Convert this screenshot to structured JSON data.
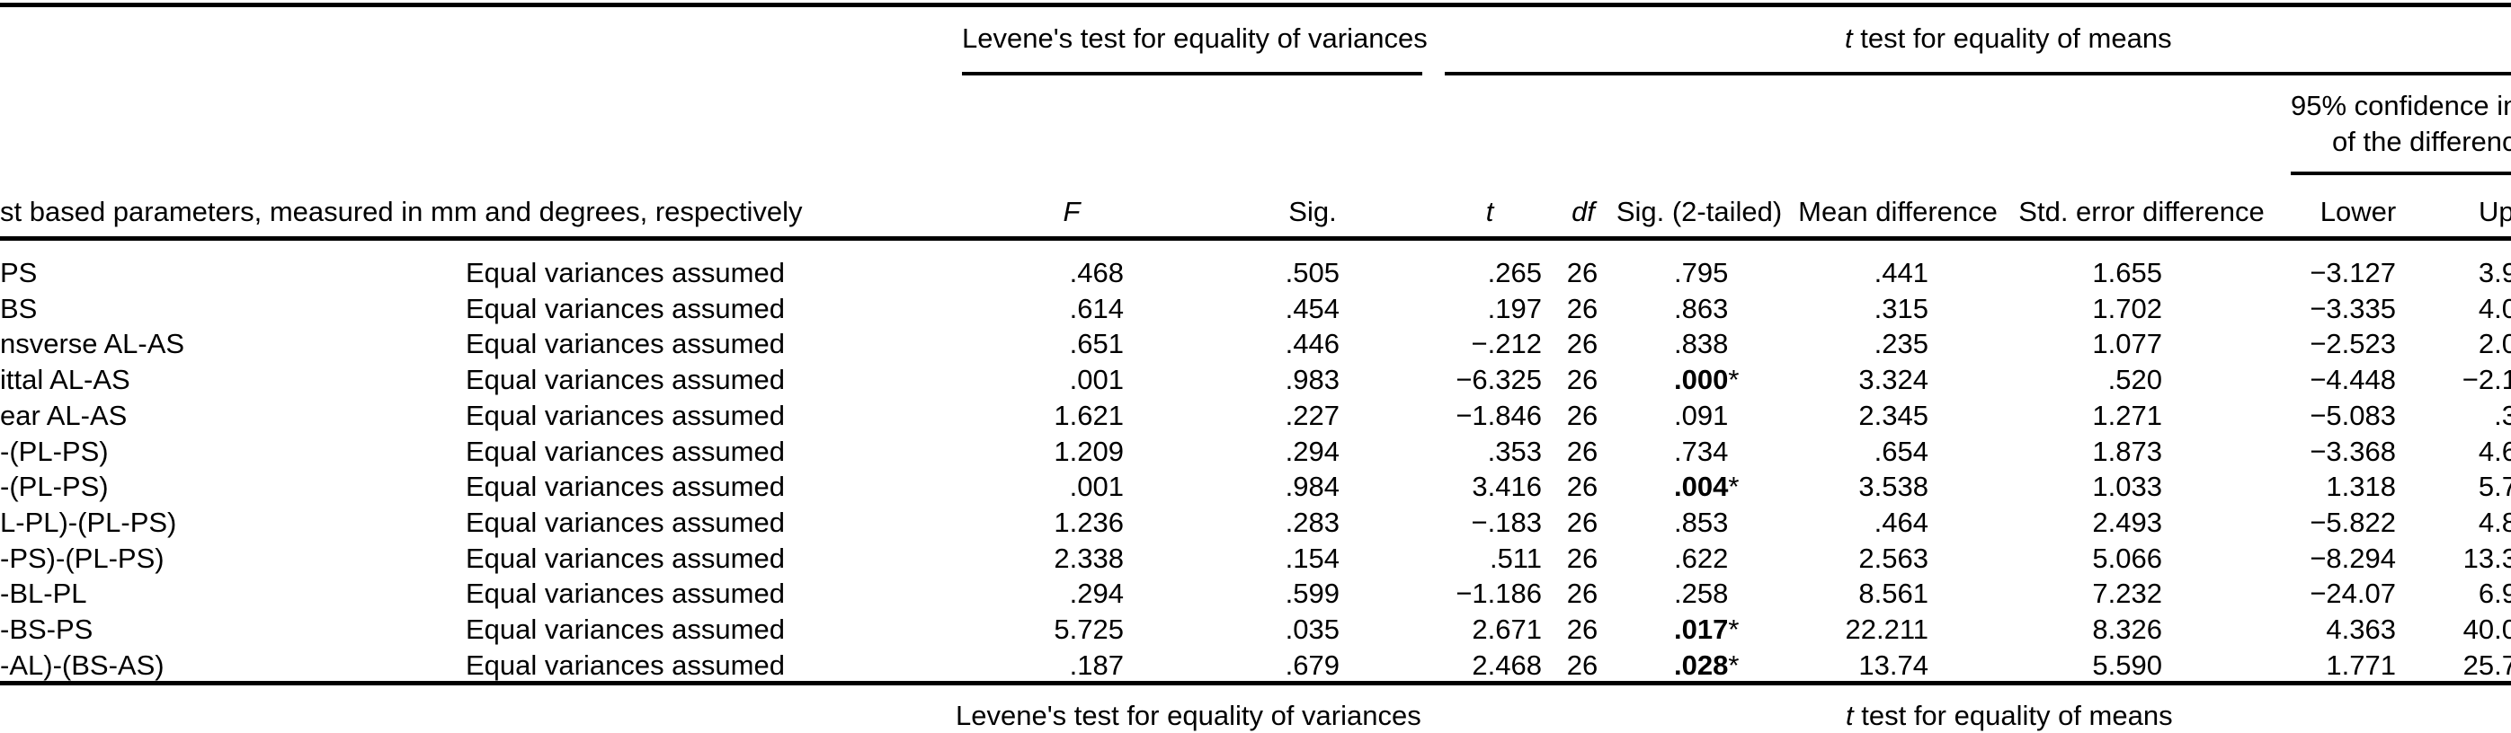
{
  "table": {
    "colors": {
      "text": "#000000",
      "background": "#ffffff",
      "rules": "#000000"
    },
    "top_spanners": {
      "levene": "Levene's test for equality of variances",
      "ttest": "t test for equality of means"
    },
    "ci_header": {
      "line1": "95% confidence in",
      "line2": "of the differenc"
    },
    "column_headers": {
      "parameters": "st based parameters, measured in mm and degrees, respectively",
      "f": "F",
      "sig": "Sig.",
      "t": "t",
      "df": "df",
      "sig_2_tailed": "Sig. (2-tailed)",
      "mean_difference": "Mean difference",
      "std_error_difference": "Std. error difference",
      "lower": "Lower",
      "upper": "Up"
    },
    "rows": [
      {
        "label": "PS",
        "variances": "Equal variances assumed",
        "f": ".468",
        "sig": ".505",
        "t": ".265",
        "df": "26",
        "sig_2_tailed": ".795",
        "mean_difference": ".441",
        "std_error_difference": "1.655",
        "lower": "−3.127",
        "upper": "3.9"
      },
      {
        "label": "BS",
        "variances": "Equal variances assumed",
        "f": ".614",
        "sig": ".454",
        "t": ".197",
        "df": "26",
        "sig_2_tailed": ".863",
        "mean_difference": ".315",
        "std_error_difference": "1.702",
        "lower": "−3.335",
        "upper": "4.0"
      },
      {
        "label": "nsverse AL-AS",
        "variances": "Equal variances assumed",
        "f": ".651",
        "sig": ".446",
        "t": "−.212",
        "df": "26",
        "sig_2_tailed": ".838",
        "mean_difference": ".235",
        "std_error_difference": "1.077",
        "lower": "−2.523",
        "upper": "2.0"
      },
      {
        "label": "ittal AL-AS",
        "variances": "Equal variances assumed",
        "f": ".001",
        "sig": ".983",
        "t": "−6.325",
        "df": "26",
        "sig_2_tailed": ".000*",
        "mean_difference": "3.324",
        "std_error_difference": ".520",
        "lower": "−4.448",
        "upper": "−2.1"
      },
      {
        "label": "ear AL-AS",
        "variances": "Equal variances assumed",
        "f": "1.621",
        "sig": ".227",
        "t": "−1.846",
        "df": "26",
        "sig_2_tailed": ".091",
        "mean_difference": "2.345",
        "std_error_difference": "1.271",
        "lower": "−5.083",
        "upper": ".3"
      },
      {
        "label": "-(PL-PS)",
        "variances": "Equal variances assumed",
        "f": "1.209",
        "sig": ".294",
        "t": ".353",
        "df": "26",
        "sig_2_tailed": ".734",
        "mean_difference": ".654",
        "std_error_difference": "1.873",
        "lower": "−3.368",
        "upper": "4.6"
      },
      {
        "label": "-(PL-PS)",
        "variances": "Equal variances assumed",
        "f": ".001",
        "sig": ".984",
        "t": "3.416",
        "df": "26",
        "sig_2_tailed": ".004*",
        "mean_difference": "3.538",
        "std_error_difference": "1.033",
        "lower": "1.318",
        "upper": "5.7"
      },
      {
        "label": "L-PL)-(PL-PS)",
        "variances": "Equal variances assumed",
        "f": "1.236",
        "sig": ".283",
        "t": "−.183",
        "df": "26",
        "sig_2_tailed": ".853",
        "mean_difference": ".464",
        "std_error_difference": "2.493",
        "lower": "−5.822",
        "upper": "4.8"
      },
      {
        "label": "-PS)-(PL-PS)",
        "variances": "Equal variances assumed",
        "f": "2.338",
        "sig": ".154",
        "t": ".511",
        "df": "26",
        "sig_2_tailed": ".622",
        "mean_difference": "2.563",
        "std_error_difference": "5.066",
        "lower": "−8.294",
        "upper": "13.3"
      },
      {
        "label": "-BL-PL",
        "variances": "Equal variances assumed",
        "f": ".294",
        "sig": ".599",
        "t": "−1.186",
        "df": "26",
        "sig_2_tailed": ".258",
        "mean_difference": "8.561",
        "std_error_difference": "7.232",
        "lower": "−24.07",
        "upper": "6.9"
      },
      {
        "label": "-BS-PS",
        "variances": "Equal variances assumed",
        "f": "5.725",
        "sig": ".035",
        "t": "2.671",
        "df": "26",
        "sig_2_tailed": ".017*",
        "mean_difference": "22.211",
        "std_error_difference": "8.326",
        "lower": "4.363",
        "upper": "40.0"
      },
      {
        "label": "-AL)-(BS-AS)",
        "variances": "Equal variances assumed",
        "f": ".187",
        "sig": ".679",
        "t": "2.468",
        "df": "26",
        "sig_2_tailed": ".028*",
        "mean_difference": "13.74",
        "std_error_difference": "5.590",
        "lower": "1.771",
        "upper": "25.7"
      }
    ],
    "bottom_spanners": {
      "levene": "Levene's test for equality of variances",
      "ttest": "t test for equality of means"
    }
  }
}
